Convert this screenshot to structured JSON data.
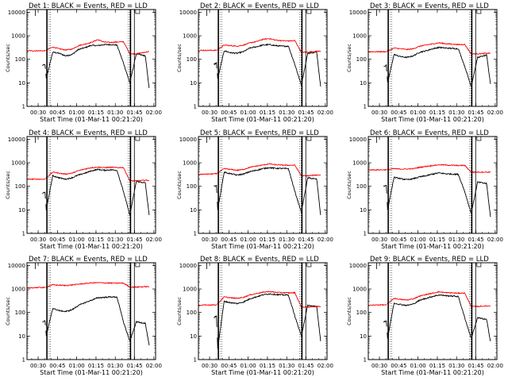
{
  "figure": {
    "x_tick_labels": [
      "00:30",
      "00:45",
      "01:00",
      "01:15",
      "01:30",
      "01:45",
      "02:00"
    ],
    "y_tick_labels": [
      "1",
      "10",
      "100",
      "1000",
      "10000"
    ],
    "xlabel": "Start Time (01-Mar-11 00:21:20)",
    "ylabel": "Counts/sec",
    "colors": {
      "events": "#000000",
      "lld": "#ff0000",
      "axes": "#000000"
    }
  },
  "chart_data": [
    {
      "type": "line",
      "title": "Det 1: BLACK = Events, RED = LLD",
      "xlabel": "Start Time (01-Mar-11 00:21:20)",
      "ylabel": "Counts/sec",
      "yscale": "log",
      "ylim": [
        1,
        13000
      ],
      "x_unit": "minutes after 00:21:20",
      "xlim": [
        0,
        100
      ],
      "series": [
        {
          "name": "Events",
          "color": "#000000",
          "x": [
            12,
            14,
            15,
            20,
            25,
            30,
            35,
            40,
            45,
            50,
            55,
            60,
            65,
            70,
            75,
            80,
            85,
            92,
            95
          ],
          "y": [
            55,
            60,
            15,
            200,
            180,
            140,
            160,
            260,
            310,
            390,
            380,
            420,
            420,
            400,
            70,
            10,
            170,
            140,
            6
          ]
        },
        {
          "name": "LLD",
          "color": "#ff0000",
          "x": [
            0,
            8,
            14,
            20,
            25,
            30,
            35,
            40,
            45,
            50,
            55,
            60,
            65,
            70,
            75,
            80,
            85,
            92,
            95
          ],
          "y": [
            230,
            230,
            230,
            330,
            280,
            250,
            270,
            380,
            440,
            520,
            680,
            540,
            520,
            540,
            560,
            170,
            170,
            200,
            210
          ]
        }
      ]
    },
    {
      "type": "line",
      "title": "Det 2: BLACK = Events, RED = LLD",
      "xlabel": "Start Time (01-Mar-11 00:21:20)",
      "ylabel": "Counts/sec",
      "yscale": "log",
      "ylim": [
        1,
        13000
      ],
      "x_unit": "minutes after 00:21:20",
      "xlim": [
        0,
        100
      ],
      "series": [
        {
          "name": "Events",
          "color": "#000000",
          "x": [
            12,
            14,
            15,
            20,
            25,
            30,
            35,
            40,
            45,
            50,
            55,
            60,
            65,
            70,
            75,
            80,
            85,
            92,
            95
          ],
          "y": [
            60,
            70,
            15,
            230,
            190,
            180,
            210,
            300,
            340,
            400,
            420,
            380,
            360,
            360,
            60,
            8,
            180,
            200,
            7
          ]
        },
        {
          "name": "LLD",
          "color": "#ff0000",
          "x": [
            0,
            8,
            14,
            20,
            25,
            30,
            35,
            40,
            45,
            50,
            55,
            60,
            65,
            70,
            75,
            80,
            85,
            92,
            95
          ],
          "y": [
            240,
            240,
            240,
            400,
            380,
            360,
            400,
            500,
            560,
            700,
            760,
            650,
            620,
            600,
            620,
            200,
            200,
            220,
            220
          ]
        }
      ]
    },
    {
      "type": "line",
      "title": "Det 3: BLACK = Events, RED = LLD",
      "xlabel": "Start Time (01-Mar-11 00:21:20)",
      "ylabel": "Counts/sec",
      "yscale": "log",
      "ylim": [
        1,
        13000
      ],
      "x_unit": "minutes after 00:21:20",
      "xlim": [
        0,
        100
      ],
      "series": [
        {
          "name": "Events",
          "color": "#000000",
          "x": [
            12,
            14,
            15,
            20,
            25,
            30,
            35,
            40,
            45,
            50,
            55,
            60,
            65,
            70,
            75,
            80,
            85,
            92,
            95
          ],
          "y": [
            50,
            55,
            10,
            160,
            130,
            120,
            140,
            200,
            230,
            280,
            320,
            300,
            290,
            280,
            50,
            7,
            120,
            150,
            9
          ]
        },
        {
          "name": "LLD",
          "color": "#ff0000",
          "x": [
            0,
            8,
            14,
            20,
            25,
            30,
            35,
            40,
            45,
            50,
            55,
            60,
            65,
            70,
            75,
            80,
            85,
            92,
            95
          ],
          "y": [
            210,
            210,
            210,
            300,
            280,
            260,
            280,
            360,
            400,
            450,
            500,
            460,
            440,
            420,
            430,
            170,
            170,
            180,
            180
          ]
        }
      ]
    },
    {
      "type": "line",
      "title": "Det 4: BLACK = Events, RED = LLD",
      "xlabel": "Start Time (01-Mar-11 00:21:20)",
      "ylabel": "Counts/sec",
      "yscale": "log",
      "ylim": [
        1,
        13000
      ],
      "x_unit": "minutes after 00:21:20",
      "xlim": [
        0,
        100
      ],
      "series": [
        {
          "name": "Events",
          "color": "#000000",
          "x": [
            12,
            14,
            15,
            20,
            25,
            30,
            35,
            40,
            45,
            50,
            55,
            60,
            65,
            70,
            75,
            80,
            85,
            92,
            95
          ],
          "y": [
            50,
            55,
            10,
            280,
            230,
            200,
            230,
            300,
            360,
            450,
            520,
            480,
            500,
            480,
            60,
            6,
            160,
            140,
            6
          ]
        },
        {
          "name": "LLD",
          "color": "#ff0000",
          "x": [
            0,
            8,
            14,
            20,
            25,
            30,
            35,
            40,
            45,
            50,
            55,
            60,
            65,
            70,
            75,
            80,
            85,
            92,
            95
          ],
          "y": [
            200,
            200,
            200,
            400,
            360,
            330,
            360,
            460,
            540,
            620,
            650,
            620,
            640,
            620,
            630,
            170,
            170,
            180,
            180
          ]
        }
      ]
    },
    {
      "type": "line",
      "title": "Det 5: BLACK = Events, RED = LLD",
      "xlabel": "Start Time (01-Mar-11 00:21:20)",
      "ylabel": "Counts/sec",
      "yscale": "log",
      "ylim": [
        1,
        13000
      ],
      "x_unit": "minutes after 00:21:20",
      "xlim": [
        0,
        100
      ],
      "series": [
        {
          "name": "Events",
          "color": "#000000",
          "x": [
            12,
            14,
            15,
            20,
            25,
            30,
            35,
            40,
            45,
            50,
            55,
            60,
            65,
            70,
            75,
            80,
            85,
            92,
            95
          ],
          "y": [
            100,
            110,
            10,
            400,
            340,
            300,
            330,
            420,
            480,
            560,
            620,
            580,
            570,
            560,
            60,
            8,
            230,
            200,
            6
          ]
        },
        {
          "name": "LLD",
          "color": "#ff0000",
          "x": [
            0,
            8,
            14,
            20,
            25,
            30,
            35,
            40,
            45,
            50,
            55,
            60,
            65,
            70,
            75,
            80,
            85,
            92,
            95
          ],
          "y": [
            320,
            330,
            340,
            560,
            520,
            480,
            520,
            640,
            720,
            800,
            900,
            820,
            800,
            780,
            790,
            280,
            280,
            300,
            300
          ]
        }
      ]
    },
    {
      "type": "line",
      "title": "Det 6: BLACK = Events, RED = LLD",
      "xlabel": "Start Time (01-Mar-11 00:21:20)",
      "ylabel": "Counts/sec",
      "yscale": "log",
      "ylim": [
        1,
        13000
      ],
      "x_unit": "minutes after 00:21:20",
      "xlim": [
        0,
        100
      ],
      "series": [
        {
          "name": "Events",
          "color": "#000000",
          "x": [
            12,
            14,
            15,
            20,
            25,
            30,
            35,
            40,
            45,
            50,
            55,
            60,
            65,
            70,
            75,
            80,
            85,
            92,
            95
          ],
          "y": [
            100,
            110,
            10,
            240,
            210,
            190,
            210,
            250,
            280,
            330,
            370,
            340,
            330,
            320,
            60,
            7,
            150,
            130,
            5
          ]
        },
        {
          "name": "LLD",
          "color": "#ff0000",
          "x": [
            0,
            8,
            14,
            20,
            25,
            30,
            35,
            40,
            45,
            50,
            55,
            60,
            65,
            70,
            75,
            80,
            85,
            92,
            95
          ],
          "y": [
            500,
            500,
            500,
            560,
            540,
            540,
            560,
            640,
            700,
            760,
            820,
            800,
            780,
            760,
            770,
            400,
            400,
            400,
            400
          ]
        }
      ]
    },
    {
      "type": "line",
      "title": "Det 7: BLACK = Events, RED = LLD",
      "xlabel": "Start Time (01-Mar-11 00:21:20)",
      "ylabel": "Counts/sec",
      "yscale": "log",
      "ylim": [
        1,
        13000
      ],
      "x_unit": "minutes after 00:21:20",
      "xlim": [
        0,
        100
      ],
      "series": [
        {
          "name": "Events",
          "color": "#000000",
          "x": [
            12,
            14,
            15,
            20,
            25,
            30,
            35,
            40,
            45,
            50,
            55,
            60,
            65,
            70,
            75,
            80,
            85,
            92,
            95
          ],
          "y": [
            40,
            45,
            10,
            150,
            120,
            110,
            130,
            200,
            260,
            330,
            420,
            440,
            460,
            450,
            40,
            6,
            40,
            35,
            4
          ]
        },
        {
          "name": "LLD",
          "color": "#ff0000",
          "x": [
            0,
            8,
            14,
            20,
            25,
            30,
            35,
            40,
            45,
            50,
            55,
            60,
            65,
            70,
            75,
            80,
            85,
            92,
            95
          ],
          "y": [
            1100,
            1150,
            1150,
            1500,
            1450,
            1400,
            1480,
            1600,
            1700,
            1800,
            1850,
            1800,
            1780,
            1760,
            1770,
            1200,
            1200,
            1250,
            1250
          ]
        }
      ]
    },
    {
      "type": "line",
      "title": "Det 8: BLACK = Events, RED = LLD",
      "xlabel": "Start Time (01-Mar-11 00:21:20)",
      "ylabel": "Counts/sec",
      "yscale": "log",
      "ylim": [
        1,
        13000
      ],
      "x_unit": "minutes after 00:21:20",
      "xlim": [
        0,
        100
      ],
      "series": [
        {
          "name": "Events",
          "color": "#000000",
          "x": [
            12,
            14,
            15,
            20,
            25,
            30,
            35,
            40,
            45,
            50,
            55,
            60,
            65,
            70,
            75,
            80,
            85,
            92,
            95
          ],
          "y": [
            60,
            70,
            3,
            300,
            260,
            240,
            280,
            380,
            460,
            560,
            620,
            580,
            560,
            550,
            70,
            10,
            200,
            180,
            6
          ]
        },
        {
          "name": "LLD",
          "color": "#ff0000",
          "x": [
            0,
            8,
            14,
            20,
            25,
            30,
            35,
            40,
            45,
            50,
            55,
            60,
            65,
            70,
            75,
            80,
            85,
            92,
            95
          ],
          "y": [
            200,
            210,
            210,
            460,
            420,
            400,
            440,
            560,
            640,
            720,
            780,
            720,
            700,
            680,
            690,
            170,
            170,
            180,
            180
          ]
        }
      ]
    },
    {
      "type": "line",
      "title": "Det 9: BLACK = Events, RED = LLD",
      "xlabel": "Start Time (01-Mar-11 00:21:20)",
      "ylabel": "Counts/sec",
      "yscale": "log",
      "ylim": [
        1,
        13000
      ],
      "x_unit": "minutes after 00:21:20",
      "xlim": [
        0,
        100
      ],
      "series": [
        {
          "name": "Events",
          "color": "#000000",
          "x": [
            12,
            14,
            15,
            20,
            25,
            30,
            35,
            40,
            45,
            50,
            55,
            60,
            65,
            70,
            75,
            80,
            85,
            92,
            95
          ],
          "y": [
            40,
            45,
            8,
            250,
            220,
            200,
            230,
            330,
            400,
            480,
            560,
            520,
            500,
            480,
            60,
            8,
            60,
            50,
            6
          ]
        },
        {
          "name": "LLD",
          "color": "#ff0000",
          "x": [
            0,
            8,
            14,
            20,
            25,
            30,
            35,
            40,
            45,
            50,
            55,
            60,
            65,
            70,
            75,
            80,
            85,
            92,
            95
          ],
          "y": [
            200,
            210,
            210,
            400,
            360,
            340,
            380,
            500,
            580,
            660,
            760,
            700,
            680,
            660,
            670,
            180,
            180,
            190,
            190
          ]
        }
      ]
    }
  ]
}
